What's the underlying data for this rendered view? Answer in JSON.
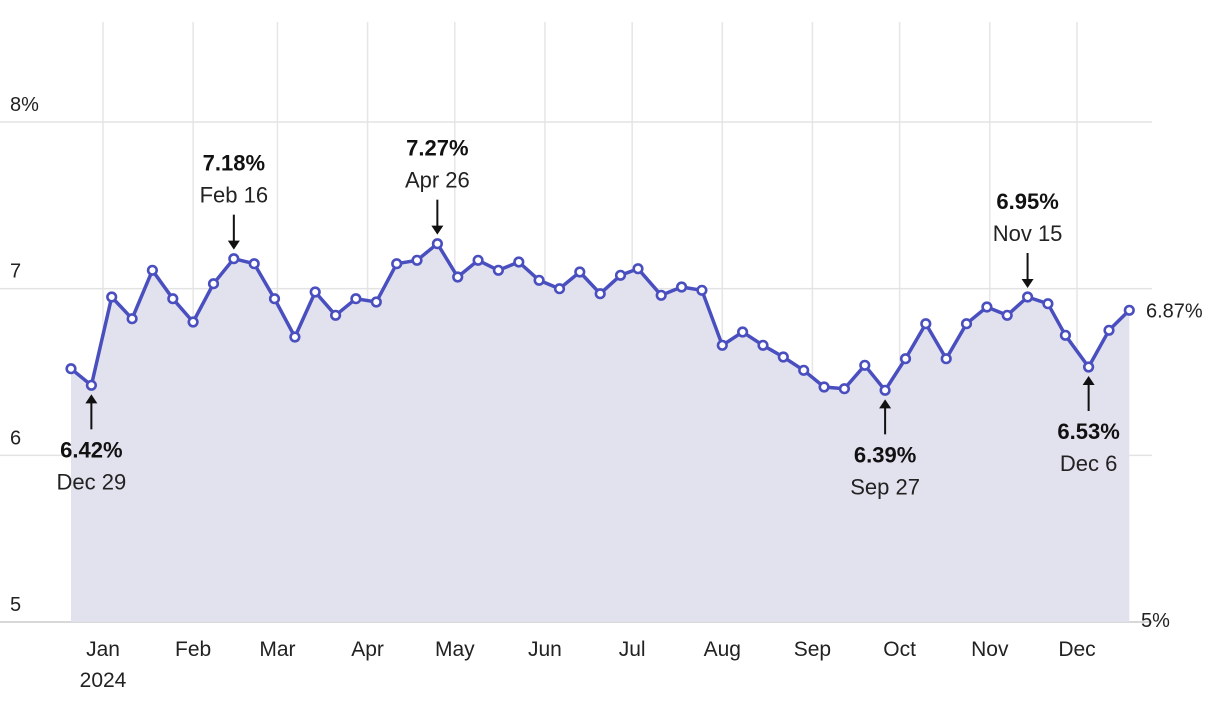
{
  "chart_data": {
    "type": "area",
    "title": "",
    "xlabel": "",
    "ylabel": "",
    "ylim": [
      5,
      8.5
    ],
    "y_ticks": [
      {
        "value": 8,
        "label": "8%"
      },
      {
        "value": 7,
        "label": "7"
      },
      {
        "value": 6,
        "label": "6"
      },
      {
        "value": 5,
        "label": "5"
      }
    ],
    "x_ticks": [
      {
        "date": "2024-01-01",
        "label": "Jan",
        "sublabel": "2024"
      },
      {
        "date": "2024-02-01",
        "label": "Feb"
      },
      {
        "date": "2024-03-01",
        "label": "Mar"
      },
      {
        "date": "2024-04-01",
        "label": "Apr"
      },
      {
        "date": "2024-05-01",
        "label": "May"
      },
      {
        "date": "2024-06-01",
        "label": "Jun"
      },
      {
        "date": "2024-07-01",
        "label": "Jul"
      },
      {
        "date": "2024-08-01",
        "label": "Aug"
      },
      {
        "date": "2024-09-01",
        "label": "Sep"
      },
      {
        "date": "2024-10-01",
        "label": "Oct"
      },
      {
        "date": "2024-11-01",
        "label": "Nov"
      },
      {
        "date": "2024-12-01",
        "label": "Dec"
      }
    ],
    "grid": true,
    "baseline_label": "5%",
    "end_label": "6.87%",
    "series": [
      {
        "x": [
          "2023-12-21",
          "2023-12-28",
          "2024-01-04",
          "2024-01-11",
          "2024-01-18",
          "2024-01-25",
          "2024-02-01",
          "2024-02-08",
          "2024-02-15",
          "2024-02-22",
          "2024-02-29",
          "2024-03-07",
          "2024-03-14",
          "2024-03-21",
          "2024-03-28",
          "2024-04-04",
          "2024-04-11",
          "2024-04-18",
          "2024-04-25",
          "2024-05-02",
          "2024-05-09",
          "2024-05-16",
          "2024-05-23",
          "2024-05-30",
          "2024-06-06",
          "2024-06-13",
          "2024-06-20",
          "2024-06-27",
          "2024-07-03",
          "2024-07-11",
          "2024-07-18",
          "2024-07-25",
          "2024-08-01",
          "2024-08-08",
          "2024-08-15",
          "2024-08-22",
          "2024-08-29",
          "2024-09-05",
          "2024-09-12",
          "2024-09-19",
          "2024-09-26",
          "2024-10-03",
          "2024-10-10",
          "2024-10-17",
          "2024-10-24",
          "2024-10-31",
          "2024-11-07",
          "2024-11-14",
          "2024-11-21",
          "2024-11-27",
          "2024-12-05",
          "2024-12-12",
          "2024-12-19"
        ],
        "values": [
          6.52,
          6.42,
          6.95,
          6.82,
          7.11,
          6.94,
          6.8,
          7.03,
          7.18,
          7.15,
          6.94,
          6.71,
          6.98,
          6.84,
          6.94,
          6.92,
          7.15,
          7.17,
          7.27,
          7.07,
          7.17,
          7.11,
          7.16,
          7.05,
          7.0,
          7.1,
          6.97,
          7.08,
          7.12,
          6.96,
          7.01,
          6.99,
          6.66,
          6.74,
          6.66,
          6.59,
          6.51,
          6.41,
          6.4,
          6.54,
          6.39,
          6.58,
          6.79,
          6.58,
          6.79,
          6.89,
          6.84,
          6.95,
          6.91,
          6.72,
          6.53,
          6.75,
          6.87
        ]
      }
    ],
    "annotations": [
      {
        "date": "2023-12-28",
        "value_label": "6.42%",
        "date_label": "Dec 29",
        "position": "below"
      },
      {
        "date": "2024-02-15",
        "value_label": "7.18%",
        "date_label": "Feb 16",
        "position": "above"
      },
      {
        "date": "2024-04-25",
        "value_label": "7.27%",
        "date_label": "Apr 26",
        "position": "above"
      },
      {
        "date": "2024-09-26",
        "value_label": "6.39%",
        "date_label": "Sep 27",
        "position": "below"
      },
      {
        "date": "2024-11-14",
        "value_label": "6.95%",
        "date_label": "Nov 15",
        "position": "above"
      },
      {
        "date": "2024-12-05",
        "value_label": "6.53%",
        "date_label": "Dec 6",
        "position": "below"
      }
    ],
    "colors": {
      "line": "#4a4fbf",
      "area": "#e2e1ee",
      "grid": "#e6e6e6"
    }
  }
}
